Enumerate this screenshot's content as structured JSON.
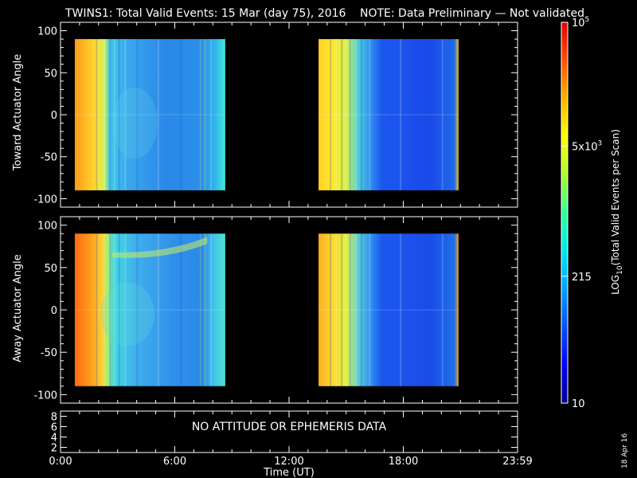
{
  "title": {
    "main": "TWINS1: Total Valid Events: 15 Mar (day  75), 2016",
    "note": "NOTE: Data Preliminary — Not validated",
    "note_color": "#ff2020"
  },
  "date_stamp": "18 Apr 16",
  "chart_data": [
    {
      "type": "heatmap",
      "ylabel": "Toward Actuator Angle",
      "ylim": [
        -110,
        110
      ],
      "yticks": [
        "100",
        "50",
        "0",
        "-50",
        "-100"
      ],
      "ytick_values": [
        100,
        50,
        0,
        -50,
        -100
      ],
      "x_hours": [
        0.75,
        8.65,
        13.55,
        20.9
      ],
      "y_extent": [
        -90,
        90
      ],
      "blocks": [
        {
          "start_hour": 0.75,
          "end_hour": 8.65
        },
        {
          "start_hour": 13.55,
          "end_hour": 20.9
        }
      ]
    },
    {
      "type": "heatmap",
      "ylabel": "Away Actuator Angle",
      "ylim": [
        -110,
        110
      ],
      "yticks": [
        "100",
        "50",
        "0",
        "-50",
        "-100"
      ],
      "ytick_values": [
        100,
        50,
        0,
        -50,
        -100
      ],
      "y_extent": [
        -90,
        90
      ],
      "blocks": [
        {
          "start_hour": 0.75,
          "end_hour": 8.65
        },
        {
          "start_hour": 13.55,
          "end_hour": 20.9
        }
      ]
    },
    {
      "type": "empty",
      "yticks": [
        "8",
        "6",
        "4",
        "2"
      ],
      "ytick_values": [
        8,
        6,
        4,
        2
      ],
      "ylim": [
        1,
        9
      ],
      "message": "NO ATTITUDE OR EPHEMERIS DATA"
    }
  ],
  "xaxis": {
    "label": "Time (UT)",
    "ticks": [
      "0:00",
      "6:00",
      "12:00",
      "18:00",
      "23:59"
    ],
    "tick_hours": [
      0,
      6,
      12,
      18,
      24
    ],
    "range_hours": [
      0,
      24
    ]
  },
  "colorbar": {
    "label_parts": [
      "LOG",
      "10",
      "(Total Valid Events per Scan)"
    ],
    "scale": "log",
    "range": [
      10,
      100000
    ],
    "ticks": [
      {
        "value": 100000,
        "base": "10",
        "exp": "5"
      },
      {
        "value": 5000,
        "base": "5x10",
        "exp": "3"
      },
      {
        "value": 215,
        "base": "215",
        "exp": ""
      },
      {
        "value": 10,
        "base": "10",
        "exp": ""
      }
    ],
    "colors": [
      "#00008c",
      "#0000ff",
      "#0050ff",
      "#00a0ff",
      "#00e8f0",
      "#30ff9a",
      "#a8ff30",
      "#ffff00",
      "#ffb000",
      "#ff5000",
      "#e00000"
    ]
  }
}
